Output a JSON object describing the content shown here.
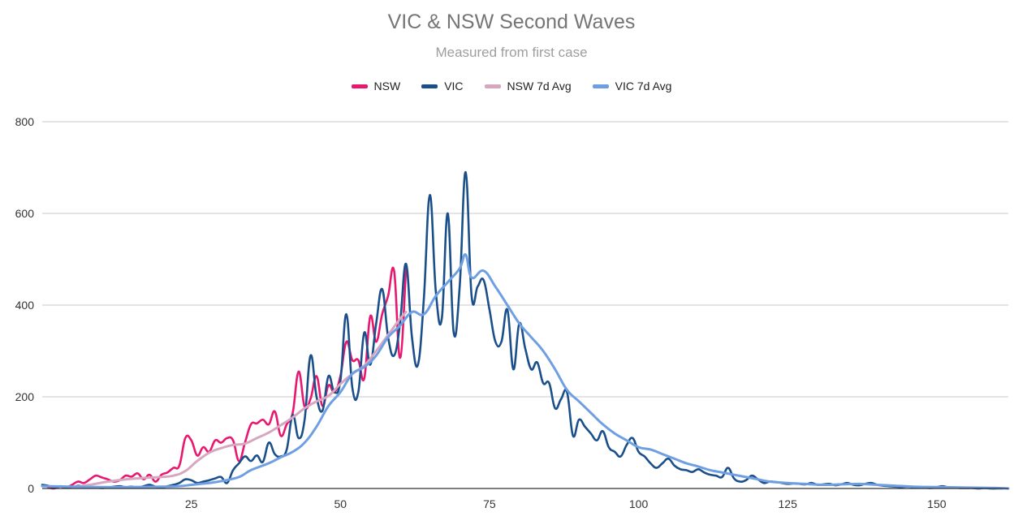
{
  "chart_data": {
    "type": "line",
    "title": "VIC & NSW Second Waves",
    "subtitle": "Measured from first case",
    "xlabel": "",
    "ylabel": "",
    "xlim": [
      0,
      162
    ],
    "ylim": [
      0,
      800
    ],
    "x_ticks": [
      25,
      50,
      75,
      100,
      125,
      150
    ],
    "y_ticks": [
      0,
      200,
      400,
      600,
      800
    ],
    "grid": "horizontal",
    "legend_position": "top",
    "series": [
      {
        "name": "NSW",
        "color": "#e8176f",
        "x": [
          1,
          2,
          3,
          4,
          5,
          6,
          7,
          8,
          9,
          10,
          11,
          12,
          13,
          14,
          15,
          16,
          17,
          18,
          19,
          20,
          21,
          22,
          23,
          24,
          25,
          26,
          27,
          28,
          29,
          30,
          31,
          32,
          33,
          34,
          35,
          36,
          37,
          38,
          39,
          40,
          41,
          42,
          43,
          44,
          45,
          46,
          47,
          48,
          49,
          50,
          51,
          52,
          53,
          54,
          55,
          56,
          57,
          58,
          59,
          60,
          61
        ],
        "values": [
          2,
          0,
          4,
          2,
          8,
          15,
          12,
          20,
          28,
          24,
          20,
          15,
          18,
          28,
          26,
          33,
          20,
          30,
          15,
          30,
          35,
          45,
          50,
          110,
          105,
          72,
          90,
          80,
          105,
          100,
          110,
          105,
          60,
          100,
          140,
          142,
          150,
          140,
          168,
          115,
          140,
          165,
          255,
          178,
          196,
          245,
          180,
          225,
          210,
          245,
          320,
          280,
          280,
          240,
          375,
          320,
          380,
          420,
          475,
          285,
          480
        ]
      },
      {
        "name": "VIC",
        "color": "#1b4f8a",
        "x": [
          0,
          1,
          2,
          3,
          4,
          5,
          6,
          7,
          8,
          9,
          10,
          11,
          12,
          13,
          14,
          15,
          16,
          17,
          18,
          19,
          20,
          21,
          22,
          23,
          24,
          25,
          26,
          27,
          28,
          29,
          30,
          31,
          32,
          33,
          34,
          35,
          36,
          37,
          38,
          39,
          40,
          41,
          42,
          43,
          44,
          45,
          46,
          47,
          48,
          49,
          50,
          51,
          52,
          53,
          54,
          55,
          56,
          57,
          58,
          59,
          60,
          61,
          62,
          63,
          64,
          65,
          66,
          67,
          68,
          69,
          70,
          71,
          72,
          73,
          74,
          75,
          76,
          77,
          78,
          79,
          80,
          81,
          82,
          83,
          84,
          85,
          86,
          87,
          88,
          89,
          90,
          91,
          92,
          93,
          94,
          95,
          96,
          97,
          98,
          99,
          100,
          101,
          102,
          103,
          104,
          105,
          106,
          107,
          108,
          109,
          110,
          111,
          112,
          113,
          114,
          115,
          116,
          117,
          118,
          119,
          120,
          121,
          122,
          123,
          124,
          125,
          126,
          127,
          128,
          129,
          130,
          131,
          132,
          133,
          134,
          135,
          136,
          137,
          138,
          139,
          140,
          141,
          142,
          143,
          144,
          145,
          146,
          147,
          148,
          149,
          150,
          151,
          152,
          153,
          154,
          155,
          156,
          157,
          158,
          159,
          160,
          161
        ],
        "values": [
          8,
          6,
          2,
          5,
          3,
          2,
          6,
          4,
          3,
          2,
          1,
          2,
          4,
          5,
          3,
          4,
          2,
          5,
          8,
          4,
          2,
          5,
          8,
          12,
          20,
          18,
          12,
          15,
          18,
          22,
          25,
          12,
          40,
          55,
          70,
          60,
          72,
          58,
          100,
          75,
          70,
          85,
          160,
          110,
          150,
          290,
          200,
          170,
          245,
          210,
          235,
          380,
          220,
          210,
          340,
          270,
          360,
          435,
          330,
          290,
          360,
          490,
          330,
          270,
          415,
          640,
          430,
          370,
          600,
          340,
          440,
          690,
          420,
          440,
          455,
          390,
          320,
          320,
          390,
          260,
          360,
          305,
          260,
          275,
          230,
          230,
          175,
          195,
          210,
          115,
          150,
          135,
          120,
          105,
          125,
          90,
          80,
          70,
          95,
          110,
          80,
          70,
          55,
          45,
          55,
          65,
          50,
          42,
          40,
          36,
          42,
          35,
          30,
          28,
          25,
          45,
          22,
          15,
          18,
          28,
          20,
          12,
          15,
          14,
          12,
          10,
          11,
          10,
          9,
          12,
          8,
          9,
          10,
          7,
          9,
          12,
          8,
          7,
          10,
          12,
          8,
          6,
          5,
          4,
          3,
          4,
          3,
          3,
          2,
          1,
          3,
          5,
          2,
          2,
          1,
          1,
          1,
          0,
          1,
          0,
          0,
          0
        ]
      },
      {
        "name": "NSW 7d Avg",
        "color": "#d7a7c2",
        "x": [
          5,
          8,
          11,
          14,
          17,
          20,
          22,
          24,
          26,
          28,
          30,
          32,
          34,
          36,
          38,
          40,
          42,
          44,
          46,
          48,
          50,
          52,
          54,
          56,
          58,
          60,
          61
        ],
        "values": [
          3,
          8,
          15,
          20,
          23,
          25,
          28,
          38,
          60,
          78,
          88,
          95,
          98,
          110,
          122,
          138,
          155,
          175,
          190,
          202,
          228,
          250,
          268,
          300,
          335,
          370,
          385
        ]
      },
      {
        "name": "VIC 7d Avg",
        "color": "#6f9fe3",
        "x": [
          0,
          5,
          10,
          15,
          20,
          23,
          25,
          28,
          30,
          33,
          35,
          38,
          40,
          42,
          44,
          46,
          48,
          50,
          52,
          54,
          56,
          58,
          60,
          62,
          64,
          66,
          68,
          70,
          71,
          72,
          74,
          76,
          78,
          80,
          82,
          84,
          86,
          88,
          90,
          92,
          94,
          96,
          98,
          100,
          102,
          104,
          106,
          108,
          110,
          112,
          114,
          116,
          118,
          120,
          122,
          125,
          128,
          131,
          134,
          137,
          140,
          143,
          146,
          150,
          155,
          160,
          162
        ],
        "values": [
          5,
          4,
          3,
          3,
          4,
          5,
          8,
          12,
          16,
          25,
          40,
          55,
          68,
          80,
          100,
          135,
          180,
          210,
          250,
          265,
          290,
          330,
          355,
          385,
          380,
          420,
          450,
          480,
          510,
          460,
          475,
          440,
          400,
          360,
          330,
          300,
          260,
          215,
          190,
          165,
          140,
          120,
          105,
          90,
          85,
          75,
          65,
          55,
          48,
          40,
          35,
          30,
          25,
          20,
          15,
          12,
          10,
          8,
          9,
          10,
          8,
          6,
          4,
          3,
          2,
          1,
          0
        ]
      }
    ]
  }
}
